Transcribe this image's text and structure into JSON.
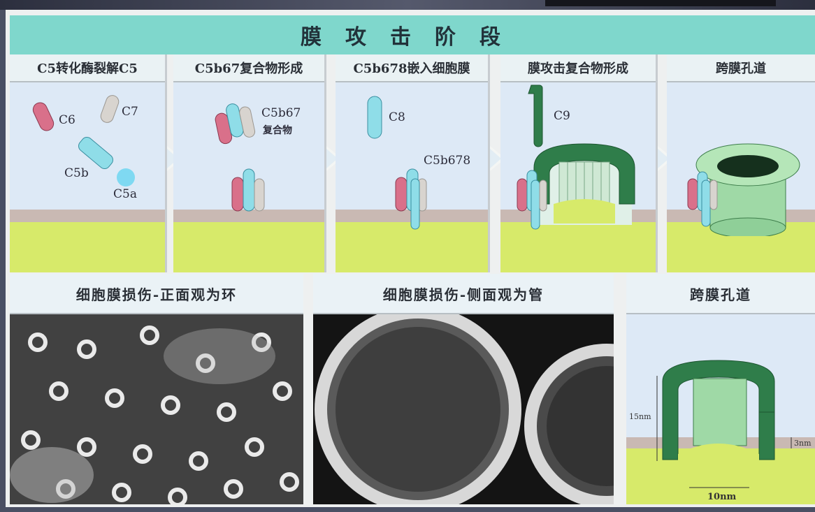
{
  "title": "膜攻击阶段",
  "panels": [
    {
      "heading": "C5转化酶裂解C5",
      "labels": [
        "C6",
        "C7",
        "C5b",
        "C5a"
      ]
    },
    {
      "heading": "C5b67复合物形成",
      "label_main": "C5b67",
      "label_sub": "复合物"
    },
    {
      "heading": "C5b678嵌入细胞膜",
      "labels": [
        "C8",
        "C5b678"
      ]
    },
    {
      "heading": "膜攻击复合物形成",
      "labels": [
        "C9"
      ]
    },
    {
      "heading": "跨膜孔道"
    }
  ],
  "bottom": {
    "left_heading": "细胞膜损伤-正面观为环",
    "mid_heading": "细胞膜损伤-侧面观为管",
    "right_heading": "跨膜孔道",
    "dims": {
      "height": "15nm",
      "thickness": "3nm",
      "width": "10nm"
    }
  },
  "colors": {
    "title_band": "#7fd7cc",
    "membrane": "#c9b9b3",
    "cytoplasm": "#d7ea6a",
    "pore_green": "#2f7d4a",
    "c5b": "#8fdde8",
    "c6": "#d9708a",
    "c7": "#d8d4cf"
  }
}
